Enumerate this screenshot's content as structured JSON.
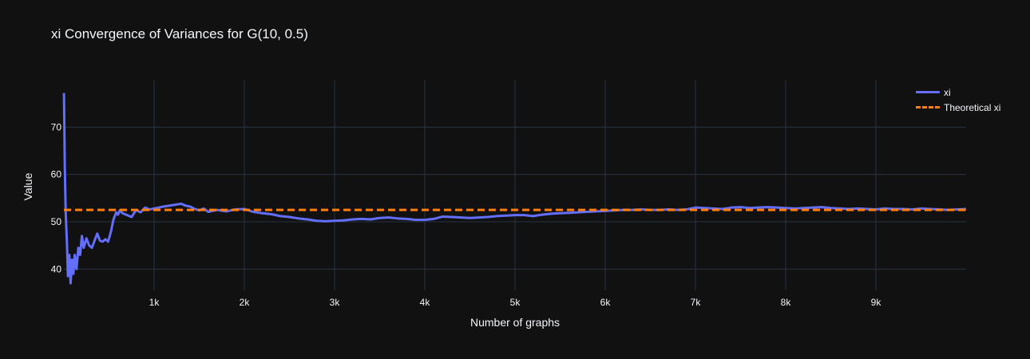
{
  "chart_data": {
    "type": "line",
    "title": "xi Convergence of Variances for G(10, 0.5)",
    "xlabel": "Number of graphs",
    "ylabel": "Value",
    "xlim": [
      0,
      10000
    ],
    "ylim": [
      35.5,
      80
    ],
    "x_ticks": [
      {
        "value": 1000,
        "label": "1k"
      },
      {
        "value": 2000,
        "label": "2k"
      },
      {
        "value": 3000,
        "label": "3k"
      },
      {
        "value": 4000,
        "label": "4k"
      },
      {
        "value": 5000,
        "label": "5k"
      },
      {
        "value": 6000,
        "label": "6k"
      },
      {
        "value": 7000,
        "label": "7k"
      },
      {
        "value": 8000,
        "label": "8k"
      },
      {
        "value": 9000,
        "label": "9k"
      }
    ],
    "y_ticks": [
      {
        "value": 40,
        "label": "40"
      },
      {
        "value": 50,
        "label": "50"
      },
      {
        "value": 60,
        "label": "60"
      },
      {
        "value": 70,
        "label": "70"
      }
    ],
    "grid": true,
    "legend_position": "top-right",
    "series": [
      {
        "name": "xi",
        "color": "#636efa",
        "style": "solid",
        "x": [
          1,
          10,
          20,
          35,
          45,
          60,
          75,
          90,
          105,
          120,
          140,
          160,
          180,
          200,
          220,
          250,
          280,
          310,
          340,
          370,
          400,
          430,
          460,
          490,
          520,
          550,
          580,
          600,
          620,
          650,
          700,
          750,
          800,
          850,
          900,
          950,
          1000,
          1100,
          1200,
          1300,
          1350,
          1400,
          1450,
          1500,
          1550,
          1600,
          1650,
          1700,
          1800,
          1900,
          2000,
          2100,
          2200,
          2300,
          2400,
          2500,
          2600,
          2700,
          2800,
          2900,
          3000,
          3100,
          3200,
          3300,
          3400,
          3500,
          3600,
          3700,
          3800,
          3900,
          4000,
          4100,
          4200,
          4300,
          4400,
          4500,
          4600,
          4700,
          4800,
          4900,
          5000,
          5100,
          5200,
          5300,
          5400,
          5500,
          5600,
          5700,
          5800,
          5900,
          6000,
          6100,
          6200,
          6300,
          6400,
          6500,
          6600,
          6700,
          6800,
          6900,
          7000,
          7100,
          7200,
          7300,
          7400,
          7500,
          7600,
          7700,
          7800,
          7900,
          8000,
          8100,
          8200,
          8300,
          8400,
          8500,
          8600,
          8700,
          8800,
          8900,
          9000,
          9100,
          9200,
          9300,
          9400,
          9500,
          9600,
          9700,
          9800,
          9900,
          10000
        ],
        "y": [
          77.2,
          62,
          52,
          45,
          38.5,
          43,
          37,
          42,
          39,
          43,
          40,
          44.5,
          43,
          47,
          44.5,
          46.5,
          45,
          44.5,
          46,
          47.5,
          46,
          45.8,
          46.3,
          45.8,
          47.8,
          50.5,
          52,
          51.5,
          52.4,
          51.8,
          51.4,
          51,
          52.5,
          52,
          53,
          52.6,
          52.8,
          53.2,
          53.5,
          53.8,
          53.4,
          53.2,
          52.7,
          52.4,
          52.8,
          52.1,
          52.3,
          52.5,
          52.2,
          52.6,
          52.7,
          52.1,
          51.8,
          51.6,
          51.2,
          51,
          50.7,
          50.5,
          50.2,
          50.1,
          50.2,
          50.3,
          50.5,
          50.6,
          50.5,
          50.8,
          50.9,
          50.7,
          50.6,
          50.4,
          50.4,
          50.6,
          51.1,
          51,
          50.9,
          50.8,
          50.9,
          51,
          51.2,
          51.3,
          51.4,
          51.4,
          51.2,
          51.5,
          51.7,
          51.8,
          51.9,
          52,
          52.1,
          52.2,
          52.3,
          52.4,
          52.5,
          52.5,
          52.6,
          52.5,
          52.5,
          52.6,
          52.5,
          52.6,
          53,
          52.9,
          52.8,
          52.7,
          53,
          53.1,
          52.9,
          53,
          53.1,
          53,
          52.9,
          52.8,
          52.9,
          53,
          53.1,
          52.9,
          52.8,
          52.7,
          52.8,
          52.7,
          52.6,
          52.8,
          52.7,
          52.7,
          52.6,
          52.8,
          52.7,
          52.6,
          52.5,
          52.6,
          52.7
        ]
      },
      {
        "name": "Theoretical xi",
        "color": "#ff7f0e",
        "style": "dash",
        "x": [
          0,
          10000
        ],
        "y": [
          52.5,
          52.5
        ]
      }
    ]
  }
}
